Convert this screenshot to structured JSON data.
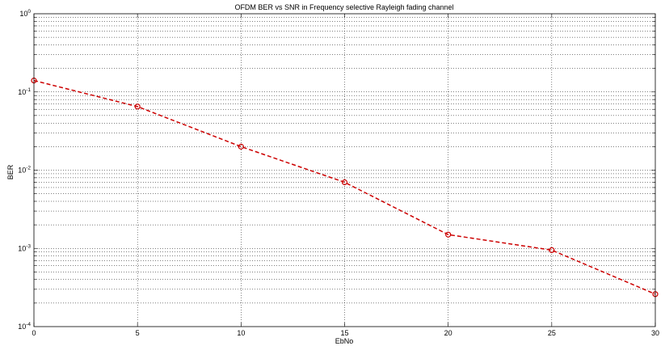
{
  "chart_data": {
    "type": "line",
    "title": "OFDM BER vs SNR in Frequency selective Rayleigh fading channel",
    "xlabel": "EbNo",
    "ylabel": "BER",
    "x": [
      0,
      5,
      10,
      15,
      20,
      25,
      30
    ],
    "series": [
      {
        "values": [
          0.14,
          0.065,
          0.02,
          0.007,
          0.0015,
          0.00095,
          0.00026
        ],
        "color": "#cc0000",
        "line_style": "dashed",
        "marker": "circle"
      }
    ],
    "xlim": [
      0,
      30
    ],
    "ylim": [
      0.0001,
      1
    ],
    "y_scale": "log",
    "x_ticks": [
      0,
      5,
      10,
      15,
      20,
      25,
      30
    ],
    "y_ticks": [
      {
        "mantissa": "10",
        "exponent": "-4",
        "value": 0.0001
      },
      {
        "mantissa": "10",
        "exponent": "-3",
        "value": 0.001
      },
      {
        "mantissa": "10",
        "exponent": "-2",
        "value": 0.01
      },
      {
        "mantissa": "10",
        "exponent": "-1",
        "value": 0.1
      },
      {
        "mantissa": "10",
        "exponent": "0",
        "value": 1
      }
    ],
    "grid": true,
    "grid_minor": true
  }
}
